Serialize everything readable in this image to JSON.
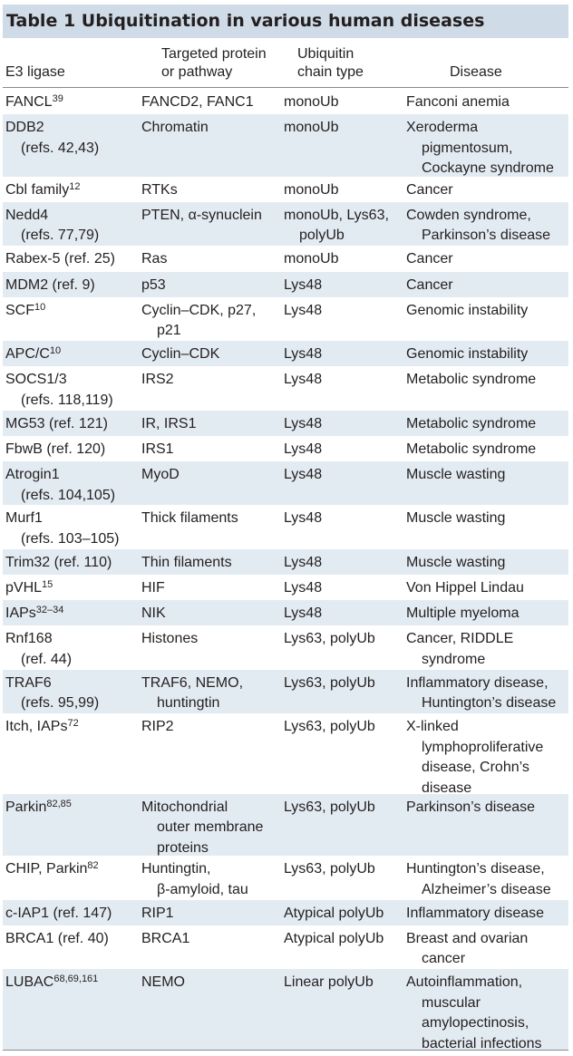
{
  "table": {
    "title": "Table 1  Ubiquitination in various human diseases",
    "headers": {
      "e3": [
        "E3 ligase"
      ],
      "target": [
        "Targeted protein",
        "or pathway"
      ],
      "chain": [
        "Ubiquitin",
        "chain type"
      ],
      "disease": [
        "Disease"
      ]
    },
    "rows": [
      {
        "e3": [
          {
            "t": "FANCL",
            "sup": "39"
          }
        ],
        "target": [
          "FANCD2, FANC1"
        ],
        "chain": [
          "monoUb"
        ],
        "disease": [
          "Fanconi anemia"
        ]
      },
      {
        "e3": [
          {
            "t": "DDB2"
          },
          {
            "t": "(refs. 42,43)"
          }
        ],
        "target": [
          "Chromatin"
        ],
        "chain": [
          "monoUb"
        ],
        "disease": [
          "Xeroderma",
          "pigmentosum,",
          "Cockayne syndrome"
        ]
      },
      {
        "e3": [
          {
            "t": "Cbl family",
            "sup": "12"
          }
        ],
        "target": [
          "RTKs"
        ],
        "chain": [
          "monoUb"
        ],
        "disease": [
          "Cancer"
        ]
      },
      {
        "e3": [
          {
            "t": "Nedd4"
          },
          {
            "t": "(refs. 77,79)"
          }
        ],
        "target": [
          "PTEN, α-synuclein"
        ],
        "chain": [
          "monoUb, Lys63,",
          "polyUb"
        ],
        "disease": [
          "Cowden syndrome,",
          "Parkinson’s disease"
        ]
      },
      {
        "e3": [
          {
            "t": "Rabex-5 (ref. 25)"
          }
        ],
        "target": [
          "Ras"
        ],
        "chain": [
          "monoUb"
        ],
        "disease": [
          "Cancer"
        ]
      },
      {
        "e3": [
          {
            "t": "MDM2 (ref. 9)"
          }
        ],
        "target": [
          "p53"
        ],
        "chain": [
          "Lys48"
        ],
        "disease": [
          "Cancer"
        ]
      },
      {
        "e3": [
          {
            "t": "SCF",
            "sup": "10"
          }
        ],
        "target": [
          "Cyclin–CDK, p27,",
          "p21"
        ],
        "chain": [
          "Lys48"
        ],
        "disease": [
          "Genomic instability"
        ]
      },
      {
        "e3": [
          {
            "t": "APC/C",
            "sup": "10"
          }
        ],
        "target": [
          "Cyclin–CDK"
        ],
        "chain": [
          "Lys48"
        ],
        "disease": [
          "Genomic instability"
        ]
      },
      {
        "e3": [
          {
            "t": "SOCS1/3"
          },
          {
            "t": "(refs. 118,119)"
          }
        ],
        "target": [
          "IRS2"
        ],
        "chain": [
          "Lys48"
        ],
        "disease": [
          "Metabolic syndrome"
        ]
      },
      {
        "e3": [
          {
            "t": "MG53 (ref. 121)"
          }
        ],
        "target": [
          "IR, IRS1"
        ],
        "chain": [
          "Lys48"
        ],
        "disease": [
          "Metabolic syndrome"
        ]
      },
      {
        "e3": [
          {
            "t": "FbwB (ref. 120)"
          }
        ],
        "target": [
          "IRS1"
        ],
        "chain": [
          "Lys48"
        ],
        "disease": [
          "Metabolic syndrome"
        ]
      },
      {
        "e3": [
          {
            "t": "Atrogin1"
          },
          {
            "t": "(refs. 104,105)"
          }
        ],
        "target": [
          "MyoD"
        ],
        "chain": [
          "Lys48"
        ],
        "disease": [
          "Muscle wasting"
        ]
      },
      {
        "e3": [
          {
            "t": "Murf1"
          },
          {
            "t": "(refs. 103–105)"
          }
        ],
        "target": [
          "Thick filaments"
        ],
        "chain": [
          "Lys48"
        ],
        "disease": [
          "Muscle wasting"
        ]
      },
      {
        "e3": [
          {
            "t": "Trim32 (ref. 110)"
          }
        ],
        "target": [
          "Thin filaments"
        ],
        "chain": [
          "Lys48"
        ],
        "disease": [
          "Muscle wasting"
        ]
      },
      {
        "e3": [
          {
            "t": "pVHL",
            "sup": "15"
          }
        ],
        "target": [
          "HIF"
        ],
        "chain": [
          "Lys48"
        ],
        "disease": [
          "Von Hippel Lindau"
        ]
      },
      {
        "e3": [
          {
            "t": "IAPs",
            "sup": "32–34"
          }
        ],
        "target": [
          "NIK"
        ],
        "chain": [
          "Lys48"
        ],
        "disease": [
          "Multiple myeloma"
        ]
      },
      {
        "e3": [
          {
            "t": "Rnf168"
          },
          {
            "t": "(ref. 44)"
          }
        ],
        "target": [
          "Histones"
        ],
        "chain": [
          "Lys63, polyUb"
        ],
        "disease": [
          "Cancer, RIDDLE",
          "syndrome"
        ]
      },
      {
        "e3": [
          {
            "t": "TRAF6"
          },
          {
            "t": "(refs. 95,99)"
          }
        ],
        "target": [
          "TRAF6, NEMO,",
          "huntingtin"
        ],
        "chain": [
          "Lys63, polyUb"
        ],
        "disease": [
          "Inflammatory disease,",
          "Huntington’s disease"
        ]
      },
      {
        "e3": [
          {
            "t": "Itch, IAPs",
            "sup": "72"
          }
        ],
        "target": [
          "RIP2"
        ],
        "chain": [
          "Lys63, polyUb"
        ],
        "disease": [
          "X-linked",
          "lymphoproliferative",
          "disease, Crohn’s",
          "disease"
        ]
      },
      {
        "e3": [
          {
            "t": "Parkin",
            "sup": "82,85"
          }
        ],
        "target": [
          "Mitochondrial",
          "outer membrane",
          "proteins"
        ],
        "chain": [
          "Lys63, polyUb"
        ],
        "disease": [
          "Parkinson’s disease"
        ]
      },
      {
        "e3": [
          {
            "t": "CHIP, Parkin",
            "sup": "82"
          }
        ],
        "target": [
          "Huntingtin,",
          "β-amyloid, tau"
        ],
        "chain": [
          "Lys63, polyUb"
        ],
        "disease": [
          "Huntington’s disease,",
          "Alzheimer’s disease"
        ]
      },
      {
        "e3": [
          {
            "t": "c-IAP1 (ref. 147)"
          }
        ],
        "target": [
          "RIP1"
        ],
        "chain": [
          "Atypical polyUb"
        ],
        "disease": [
          "Inflammatory disease"
        ]
      },
      {
        "e3": [
          {
            "t": "BRCA1 (ref. 40)"
          }
        ],
        "target": [
          "BRCA1"
        ],
        "chain": [
          "Atypical polyUb"
        ],
        "disease": [
          "Breast and ovarian",
          "cancer"
        ]
      },
      {
        "e3": [
          {
            "t": "LUBAC",
            "sup": "68,69,161"
          }
        ],
        "target": [
          "NEMO"
        ],
        "chain": [
          "Linear polyUb"
        ],
        "disease": [
          "Autoinflammation,",
          "muscular",
          "amylopectinosis,",
          "bacterial infections"
        ]
      }
    ]
  },
  "colors": {
    "title_band": "#cfdbe7",
    "row_shade": "#e3ebf2",
    "rule": "#8a8a8a",
    "text": "#231f20"
  }
}
